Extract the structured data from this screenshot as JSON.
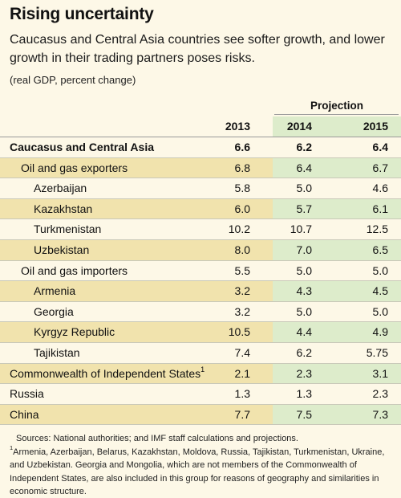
{
  "title": "Rising uncertainty",
  "subtitle": "Caucasus and Central Asia countries see softer growth, and lower growth in their trading partners poses risks.",
  "units": "(real GDP, percent change)",
  "projection_label": "Projection",
  "columns": [
    "2013",
    "2014",
    "2015"
  ],
  "rows": [
    {
      "label": "Caucasus and Central Asia",
      "sup": "",
      "v2013": "6.6",
      "v2014": "6.2",
      "v2015": "6.4",
      "bold": true,
      "indent": 0,
      "shaded": false
    },
    {
      "label": "Oil and gas exporters",
      "sup": "",
      "v2013": "6.8",
      "v2014": "6.4",
      "v2015": "6.7",
      "bold": false,
      "indent": 1,
      "shaded": true
    },
    {
      "label": "Azerbaijan",
      "sup": "",
      "v2013": "5.8",
      "v2014": "5.0",
      "v2015": "4.6",
      "bold": false,
      "indent": 2,
      "shaded": false
    },
    {
      "label": "Kazakhstan",
      "sup": "",
      "v2013": "6.0",
      "v2014": "5.7",
      "v2015": "6.1",
      "bold": false,
      "indent": 2,
      "shaded": true
    },
    {
      "label": "Turkmenistan",
      "sup": "",
      "v2013": "10.2",
      "v2014": "10.7",
      "v2015": "12.5",
      "bold": false,
      "indent": 2,
      "shaded": false
    },
    {
      "label": "Uzbekistan",
      "sup": "",
      "v2013": "8.0",
      "v2014": "7.0",
      "v2015": "6.5",
      "bold": false,
      "indent": 2,
      "shaded": true
    },
    {
      "label": "Oil and gas importers",
      "sup": "",
      "v2013": "5.5",
      "v2014": "5.0",
      "v2015": "5.0",
      "bold": false,
      "indent": 1,
      "shaded": false
    },
    {
      "label": "Armenia",
      "sup": "",
      "v2013": "3.2",
      "v2014": "4.3",
      "v2015": "4.5",
      "bold": false,
      "indent": 2,
      "shaded": true
    },
    {
      "label": "Georgia",
      "sup": "",
      "v2013": "3.2",
      "v2014": "5.0",
      "v2015": "5.0",
      "bold": false,
      "indent": 2,
      "shaded": false
    },
    {
      "label": "Kyrgyz Republic",
      "sup": "",
      "v2013": "10.5",
      "v2014": "4.4",
      "v2015": "4.9",
      "bold": false,
      "indent": 2,
      "shaded": true
    },
    {
      "label": "Tajikistan",
      "sup": "",
      "v2013": "7.4",
      "v2014": "6.2",
      "v2015": "5.75",
      "bold": false,
      "indent": 2,
      "shaded": false
    },
    {
      "label": "Commonwealth of Independent States",
      "sup": "1",
      "v2013": "2.1",
      "v2014": "2.3",
      "v2015": "3.1",
      "bold": false,
      "indent": 0,
      "shaded": true
    },
    {
      "label": "Russia",
      "sup": "",
      "v2013": "1.3",
      "v2014": "1.3",
      "v2015": "2.3",
      "bold": false,
      "indent": 0,
      "shaded": false
    },
    {
      "label": "China",
      "sup": "",
      "v2013": "7.7",
      "v2014": "7.5",
      "v2015": "7.3",
      "bold": false,
      "indent": 0,
      "shaded": true
    }
  ],
  "source": "Sources: National authorities; and IMF staff calculations and projections.",
  "footnote_marker": "1",
  "footnote": "Armenia, Azerbaijan, Belarus, Kazakhstan, Moldova, Russia, Tajikistan, Turkmenistan, Ukraine, and Uzbekistan. Georgia and Mongolia, which are not members of the Commonwealth of Independent States, are also included in this group for reasons of geography and similarities in economic structure.",
  "colors": {
    "background": "#fdf8e7",
    "row_shade": "#f1e3ad",
    "projection_shade": "#ddeccb"
  }
}
